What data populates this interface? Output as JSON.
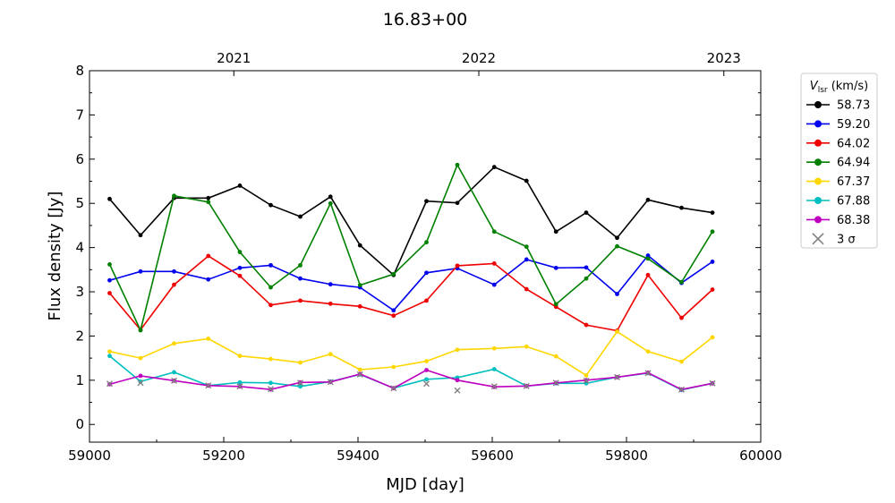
{
  "chart_data": {
    "type": "line",
    "title": "16.83+00",
    "xlabel": "MJD [day]",
    "ylabel": "Flux density [Jy]",
    "xlim": [
      59000,
      60000
    ],
    "ylim": [
      -0.4,
      8
    ],
    "xticks": [
      "59000",
      "59200",
      "59400",
      "59600",
      "59800",
      "60000"
    ],
    "yticks": [
      "0",
      "1",
      "2",
      "3",
      "4",
      "5",
      "6",
      "7",
      "8"
    ],
    "top_axis": {
      "ticks": [
        {
          "label": "2021",
          "mjd": 59215
        },
        {
          "label": "2022",
          "mjd": 59580
        },
        {
          "label": "2023",
          "mjd": 59945
        }
      ]
    },
    "grid": false,
    "legend": {
      "placement": "outside-top-right",
      "title_main": "V",
      "title_sub": "lsr",
      "title_rest": " (km/s)",
      "limit_label": "3 σ"
    },
    "x": [
      59030,
      59076,
      59126,
      59177,
      59224,
      59270,
      59314,
      59359,
      59403,
      59453,
      59502,
      59548,
      59603,
      59651,
      59695,
      59740,
      59786,
      59832,
      59882,
      59928
    ],
    "series": [
      {
        "name": "58.73",
        "color": "#000000",
        "values": [
          5.1,
          4.28,
          5.12,
          5.12,
          5.4,
          4.96,
          4.7,
          5.15,
          4.05,
          3.38,
          5.05,
          5.01,
          5.82,
          5.51,
          4.36,
          4.79,
          4.22,
          5.08,
          4.9,
          4.79
        ]
      },
      {
        "name": "59.20",
        "color": "#0000ee",
        "values": [
          3.26,
          3.46,
          3.46,
          3.28,
          3.54,
          3.6,
          3.3,
          3.17,
          3.1,
          2.58,
          3.43,
          3.53,
          3.16,
          3.73,
          3.54,
          3.55,
          2.95,
          3.82,
          3.2,
          3.68
        ]
      },
      {
        "name": "64.02",
        "color": "#ee0000",
        "values": [
          2.97,
          2.14,
          3.16,
          3.81,
          3.36,
          2.7,
          2.8,
          2.73,
          2.67,
          2.46,
          2.8,
          3.59,
          3.64,
          3.06,
          2.66,
          2.25,
          2.12,
          3.38,
          2.41,
          3.05
        ]
      },
      {
        "name": "64.94",
        "color": "#008000",
        "values": [
          3.62,
          2.13,
          5.17,
          5.03,
          3.9,
          3.1,
          3.6,
          5.0,
          3.15,
          3.4,
          4.12,
          5.87,
          4.36,
          4.02,
          2.72,
          3.3,
          4.03,
          3.75,
          3.22,
          4.36
        ]
      },
      {
        "name": "67.37",
        "color": "#ffd700",
        "values": [
          1.65,
          1.5,
          1.83,
          1.94,
          1.55,
          1.48,
          1.4,
          1.59,
          1.24,
          1.3,
          1.43,
          1.69,
          1.72,
          1.76,
          1.54,
          1.11,
          2.1,
          1.65,
          1.42,
          1.97
        ]
      },
      {
        "name": "67.88",
        "color": "#00bfbf",
        "values": [
          1.55,
          0.97,
          1.18,
          0.88,
          0.95,
          0.94,
          0.86,
          0.97,
          1.13,
          0.82,
          1.02,
          1.06,
          1.25,
          0.87,
          0.93,
          0.93,
          1.07,
          1.16,
          0.78,
          0.93
        ]
      },
      {
        "name": "68.38",
        "color": "#bf00bf",
        "values": [
          0.91,
          1.1,
          0.99,
          0.88,
          0.86,
          0.79,
          0.95,
          0.96,
          1.14,
          0.82,
          1.23,
          1.0,
          0.85,
          0.87,
          0.94,
          1.0,
          1.07,
          1.17,
          0.79,
          0.93
        ]
      }
    ],
    "limits_3sigma": [
      {
        "x": 59030,
        "y": 0.92
      },
      {
        "x": 59076,
        "y": 0.94
      },
      {
        "x": 59126,
        "y": 0.99
      },
      {
        "x": 59177,
        "y": 0.88
      },
      {
        "x": 59224,
        "y": 0.86
      },
      {
        "x": 59270,
        "y": 0.8
      },
      {
        "x": 59314,
        "y": 0.94
      },
      {
        "x": 59359,
        "y": 0.96
      },
      {
        "x": 59403,
        "y": 1.13
      },
      {
        "x": 59453,
        "y": 0.82
      },
      {
        "x": 59502,
        "y": 0.92
      },
      {
        "x": 59548,
        "y": 0.77
      },
      {
        "x": 59603,
        "y": 0.86
      },
      {
        "x": 59651,
        "y": 0.87
      },
      {
        "x": 59695,
        "y": 0.94
      },
      {
        "x": 59740,
        "y": 0.99
      },
      {
        "x": 59786,
        "y": 1.07
      },
      {
        "x": 59832,
        "y": 1.16
      },
      {
        "x": 59882,
        "y": 0.79
      },
      {
        "x": 59928,
        "y": 0.93
      }
    ]
  }
}
